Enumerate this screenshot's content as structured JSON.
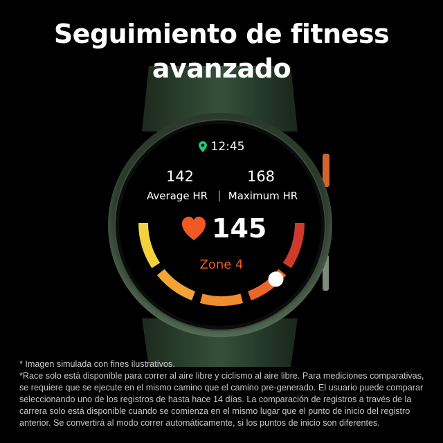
{
  "headline": [
    "Seguimiento de fitness",
    "avanzado"
  ],
  "watch": {
    "time": "12:45",
    "location_icon": "map-pin-icon",
    "average_hr_value": "142",
    "average_hr_label": "Average HR",
    "separator": "|",
    "maximum_hr_value": "168",
    "maximum_hr_label": "Maximum HR",
    "heart_rate": "145",
    "heart_icon": "heart-icon",
    "zone": "Zone 4",
    "zone_colors": [
      "#f3d23e",
      "#f2a536",
      "#f08d2e",
      "#ec652b",
      "#cf3b2b"
    ],
    "current_zone": 4,
    "accent_color": "#ee5a2a",
    "pin_color": "#1fc97a"
  },
  "footnotes": [
    "* Imagen simulada con fines ilustrativos.",
    "*Race solo está disponible para correr al aire libre y ciclismo al aire libre. Para mediciones comparativas, se requiere que se ejecute en el mismo camino que el camino pre-generado. El usuario puede comparar seleccionando uno de los registros de hasta hace 14 días. La comparación de registros a través de la carrera solo está disponible cuando se comienza en el mismo lugar que el punto de inicio del registro anterior. Se convertirá al modo correr automáticamente, si los puntos de inicio son diferentes."
  ]
}
